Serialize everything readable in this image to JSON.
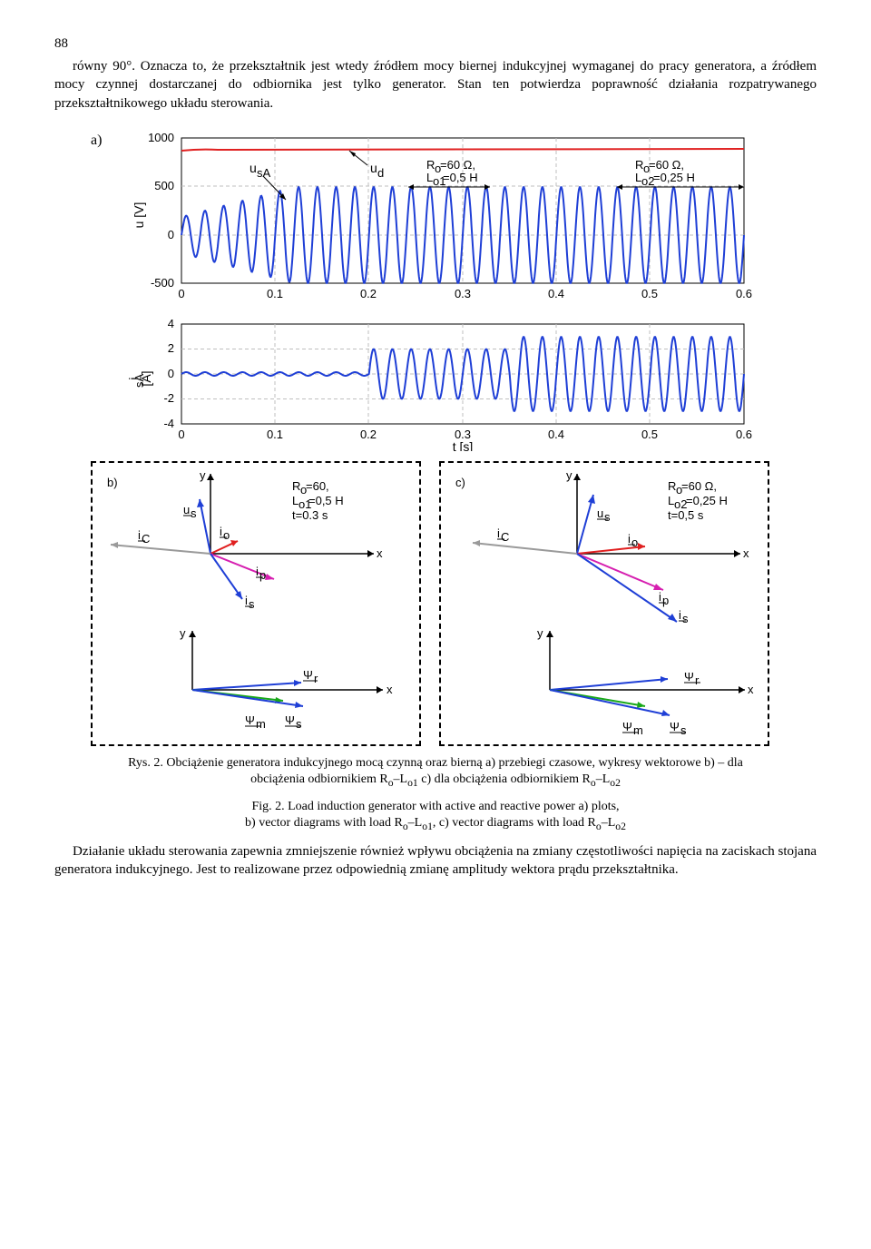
{
  "page_number": "88",
  "para1_a": "równy 90°. Oznacza to, że przekształtnik jest wtedy źródłem mocy biernej indukcyjnej wymaganej do pracy generatora, a źródłem mocy czynnej dostarczanej do odbiornika jest tylko generator. Stan ten potwierdza poprawność działania rozpatrywanego przekształtnikowego układu sterowania.",
  "chart_a": {
    "label": "a)",
    "ylab": "u [V]",
    "ylab2": "i",
    "ylab2_sub": "sA",
    "ylab2_unit": " [A]",
    "xlab": "t [s]",
    "usA": "u",
    "usA_sub": "sA",
    "ud": "u",
    "ud_sub": "d",
    "ann1": "R",
    "ann1_sub": "o",
    "ann1_rest": "=60 Ω,",
    "ann1b": "L",
    "ann1b_sub": "o1",
    "ann1b_rest": "=0,5 H",
    "ann2": "R",
    "ann2_sub": "o",
    "ann2_rest": "=60 Ω,",
    "ann2b": "L",
    "ann2b_sub": "o2",
    "ann2b_rest": "=0,25 H",
    "yticks_u": [
      "1000",
      "500",
      "0",
      "-500"
    ],
    "yticks_i": [
      "4",
      "2",
      "0",
      "-2",
      "-4"
    ],
    "xticks": [
      "0",
      "0.1",
      "0.2",
      "0.3",
      "0.4",
      "0.5",
      "0.6"
    ],
    "line_color": "#1f3fd6",
    "ud_color": "#e02020",
    "grid_color": "#bfbfbf",
    "bg": "#ffffff"
  },
  "vec_b": {
    "label": "b)",
    "title1": "R",
    "title1_sub": "o",
    "title1_rest": "=60,",
    "title2": "L",
    "title2_sub": "o1",
    "title2_rest": "=0,5 H",
    "title3": "t=0.3 s",
    "y": "y",
    "x": "x",
    "us": "u",
    "us_sub": "s",
    "io": "i",
    "io_sub": "o",
    "ic": "i",
    "ic_sub": "C",
    "ip": "i",
    "ip_sub": "p",
    "is": "i",
    "is_sub": "s",
    "psi_r": "Ψ",
    "psi_r_sub": "r",
    "psi_m": "Ψ",
    "psi_m_sub": "m",
    "psi_s": "Ψ",
    "psi_s_sub": "s"
  },
  "vec_c": {
    "label": "c)",
    "title1": "R",
    "title1_sub": "o",
    "title1_rest": "=60 Ω,",
    "title2": "L",
    "title2_sub": "o2",
    "title2_rest": "=0,25 H",
    "title3": "t=0,5 s",
    "y": "y",
    "x": "x",
    "us": "u",
    "us_sub": "s",
    "io": "i",
    "io_sub": "o",
    "ic": "i",
    "ic_sub": "C",
    "ip": "i",
    "ip_sub": "p",
    "is": "i",
    "is_sub": "s",
    "psi_r": "Ψ",
    "psi_r_sub": "r",
    "psi_m": "Ψ",
    "psi_m_sub": "m",
    "psi_s": "Ψ",
    "psi_s_sub": "s"
  },
  "colors": {
    "us": "#1f3fd6",
    "io": "#e02020",
    "ic": "#9a9a9a",
    "ip": "#d61fb0",
    "is": "#1f3fd6",
    "psi_r": "#1f3fd6",
    "psi_m": "#18a818",
    "psi_s": "#1f3fd6",
    "axis": "#000000"
  },
  "caption_pl": "Rys. 2. Obciążenie generatora indukcyjnego mocą czynną oraz bierną a) przebiegi czasowe, wykresy wektorowe b) – dla obciążenia odbiornikiem R",
  "caption_pl_sub1": "o",
  "caption_pl_mid1": "–L",
  "caption_pl_sub2": "o1",
  "caption_pl_mid2": " c) dla obciążenia odbiornikiem R",
  "caption_pl_sub3": "o",
  "caption_pl_mid3": "–L",
  "caption_pl_sub4": "o2",
  "caption_en": "Fig. 2. Load induction generator with active and reactive power a) plots,",
  "caption_en_2": "b) vector diagrams with load R",
  "caption_en_sub1": "o",
  "caption_en_mid1": "–L",
  "caption_en_sub2": "o1",
  "caption_en_mid2": ", c) vector diagrams with load R",
  "caption_en_sub3": "o",
  "caption_en_mid3": "–L",
  "caption_en_sub4": "o2",
  "para2": "Działanie układu sterowania zapewnia zmniejszenie również wpływu obciążenia na zmiany częstotliwości napięcia na zaciskach stojana generatora indukcyjnego. Jest to realizowane przez odpowiednią zmianę amplitudy wektora prądu przekształtnika."
}
